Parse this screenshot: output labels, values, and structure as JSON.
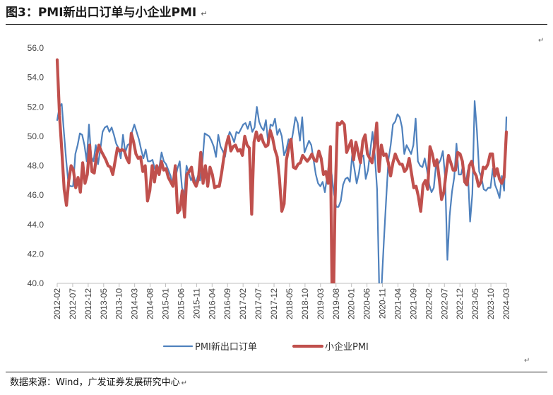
{
  "header": {
    "title": "图3：PMI新出口订单与小企业PMI",
    "return_mark": "↵"
  },
  "footer": {
    "source": "数据来源：Wind，广发证券发展研究中心",
    "return_mark": "↵"
  },
  "chart_data": {
    "type": "line",
    "title": "",
    "xlabel": "",
    "ylabel": "",
    "ylim": [
      40,
      56
    ],
    "yticks": [
      "40.0",
      "42.0",
      "44.0",
      "46.0",
      "48.0",
      "50.0",
      "52.0",
      "54.0",
      "56.0"
    ],
    "xticks": [
      "2012-02",
      "2012-07",
      "2012-12",
      "2013-05",
      "2013-10",
      "2014-03",
      "2014-08",
      "2015-01",
      "2015-06",
      "2015-11",
      "2016-04",
      "2016-09",
      "2017-02",
      "2017-07",
      "2017-12",
      "2018-05",
      "2018-10",
      "2019-03",
      "2019-08",
      "2020-01",
      "2020-06",
      "2020-11",
      "2021-04",
      "2021-09",
      "2022-02",
      "2022-07",
      "2022-12",
      "2023-05",
      "2023-10",
      "2024-03"
    ],
    "x_start": "2012-02",
    "x_end": "2024-03",
    "legend_position": "bottom",
    "series": [
      {
        "name": "PMI新出口订单",
        "color": "#4f81bd",
        "values": [
          51.1,
          52.0,
          52.2,
          50.2,
          48.3,
          46.7,
          46.6,
          46.6,
          48.8,
          49.4,
          50.2,
          50.1,
          49.4,
          48.3,
          50.8,
          48.6,
          48.3,
          49.4,
          48.1,
          49.1,
          50.3,
          50.6,
          50.7,
          50.3,
          50.6,
          50.1,
          49.5,
          49.2,
          48.5,
          50.1,
          48.9,
          49.4,
          49.5,
          50.3,
          50.8,
          50.3,
          49.8,
          49.1,
          48.5,
          49.1,
          48.3,
          48.3,
          48.4,
          47.8,
          47.5,
          47.9,
          48.9,
          48.3,
          48.1,
          47.7,
          47.3,
          46.6,
          47.1,
          47.8,
          48.3,
          46.5,
          46.0,
          48.0,
          47.5,
          47.0,
          47.4,
          46.8,
          47.3,
          47.0,
          48.2,
          50.2,
          50.1,
          50.0,
          49.7,
          49.3,
          48.6,
          50.1,
          49.3,
          49.0,
          48.6,
          49.7,
          50.3,
          50.0,
          49.6,
          50.3,
          50.2,
          50.5,
          50.8,
          50.9,
          50.5,
          51.0,
          50.3,
          50.6,
          52.0,
          51.0,
          50.6,
          50.4,
          51.1,
          49.5,
          50.8,
          50.7,
          51.2,
          50.1,
          50.5,
          50.0,
          48.7,
          49.1,
          49.8,
          49.4,
          50.3,
          51.3,
          50.9,
          49.7,
          51.3,
          48.9,
          49.3,
          49.7,
          49.4,
          48.4,
          47.4,
          46.8,
          46.6,
          46.9,
          46.2,
          47.3,
          48.3,
          47.4,
          46.1,
          45.2,
          45.2,
          45.6,
          46.7,
          47.1,
          47.2,
          46.9,
          48.7,
          47.8,
          46.8,
          47.5,
          48.6,
          48.7,
          47.1,
          47.7,
          49.0,
          50.3,
          48.7,
          46.4,
          39.3,
          39.8,
          42.9,
          45.7,
          48.4,
          49.4,
          50.8,
          51.0,
          51.5,
          51.3,
          50.6,
          48.8,
          49.4,
          49.1,
          48.8,
          49.4,
          51.2,
          48.3,
          48.0,
          47.9,
          48.5,
          47.7,
          46.7,
          46.2,
          46.5,
          48.1,
          48.1,
          48.4,
          49.0,
          47.2,
          41.6,
          44.6,
          46.2,
          47.2,
          49.5,
          47.4,
          47.4,
          48.1,
          46.7,
          47.7,
          44.2,
          46.1,
          52.4,
          50.4,
          47.6,
          47.2,
          46.4,
          46.3,
          46.5,
          46.5,
          47.8,
          46.7,
          46.3,
          45.8,
          47.3,
          46.3,
          51.3
        ]
      },
      {
        "name": "小企业PMI",
        "color": "#c0504d",
        "values": [
          55.2,
          51.4,
          49.0,
          46.4,
          45.3,
          47.0,
          48.0,
          47.7,
          46.5,
          47.2,
          46.2,
          48.2,
          46.8,
          47.4,
          49.4,
          47.6,
          47.5,
          48.7,
          49.4,
          49.0,
          48.7,
          48.4,
          48.0,
          47.9,
          47.4,
          48.3,
          49.2,
          49.0,
          49.1,
          49.0,
          48.5,
          48.2,
          50.2,
          49.6,
          48.8,
          48.5,
          48.6,
          47.6,
          48.0,
          45.6,
          46.3,
          48.0,
          46.9,
          48.0,
          47.4,
          48.3,
          47.7,
          47.8,
          47.2,
          46.9,
          46.6,
          48.0,
          44.8,
          45.0,
          46.3,
          44.5,
          47.4,
          47.6,
          47.9,
          46.9,
          46.6,
          47.1,
          48.9,
          46.8,
          48.0,
          46.6,
          47.9,
          47.4,
          46.5,
          46.6,
          46.6,
          47.5,
          48.6,
          49.4,
          50.0,
          49.0,
          49.3,
          49.4,
          49.0,
          49.1,
          48.7,
          50.0,
          49.4,
          49.2,
          44.7,
          49.6,
          50.3,
          49.7,
          50.1,
          49.6,
          49.3,
          49.4,
          50.4,
          49.9,
          49.1,
          48.6,
          47.1,
          44.9,
          45.4,
          48.4,
          49.2,
          49.8,
          47.9,
          47.8,
          48.1,
          48.2,
          48.7,
          48.5,
          48.3,
          48.5,
          48.8,
          48.4,
          48.3,
          49.0,
          48.5,
          47.4,
          47.6,
          46.8,
          49.3,
          35.4,
          45.6,
          50.9,
          50.8,
          51.0,
          50.8,
          48.9,
          49.3,
          49.7,
          48.4,
          49.6,
          48.9,
          48.2,
          49.7,
          50.1,
          48.8,
          48.5,
          48.2,
          49.3,
          50.9,
          47.6,
          49.4,
          48.7,
          48.8,
          48.2,
          47.3,
          48.2,
          48.8,
          48.4,
          48.1,
          48.1,
          47.6,
          47.8,
          48.5,
          47.5,
          46.5,
          46.6,
          45.9,
          44.9,
          46.7,
          47.0,
          46.4,
          49.3,
          48.8,
          48.0,
          48.4,
          47.1,
          45.7,
          46.2,
          47.6,
          48.7,
          48.2,
          47.7,
          47.7,
          48.9,
          48.8,
          48.3,
          46.9,
          46.7,
          48.0,
          48.3,
          47.6,
          47.3,
          46.6,
          46.9,
          47.9,
          47.8,
          48.1,
          48.8,
          48.8,
          47.3,
          47.8,
          47.1,
          46.8,
          47.2,
          50.3
        ]
      }
    ]
  }
}
